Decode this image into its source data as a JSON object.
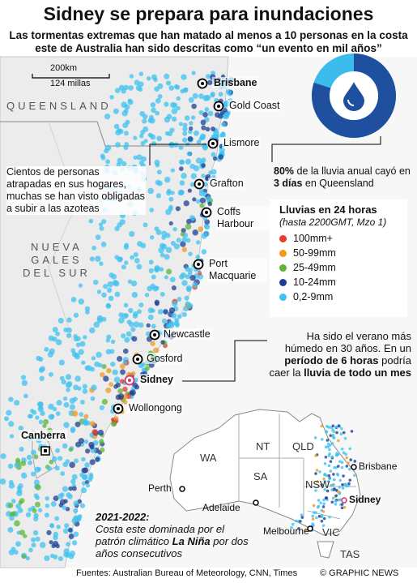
{
  "header": {
    "title": "Sidney se prepara para inundaciones",
    "subtitle": "Las tormentas extremas que han matado al menos a 10 personas en la costa este de Australia han sido descritas como “un evento en mil años”"
  },
  "scale": {
    "km": "200km",
    "miles": "124 millas"
  },
  "regions": {
    "queensland": "QUEENSLAND",
    "nsw": [
      "NUEVA",
      "GALES",
      "DEL SUR"
    ]
  },
  "cities": [
    {
      "name": "Brisbane",
      "bold": true
    },
    {
      "name": "Gold Coast",
      "bold": false
    },
    {
      "name": "Lismore",
      "bold": false
    },
    {
      "name": "Grafton",
      "bold": false
    },
    {
      "name": "Coffs Harbour",
      "bold": false
    },
    {
      "name": "Port Macquarie",
      "bold": false
    },
    {
      "name": "Newcastle",
      "bold": false
    },
    {
      "name": "Gosford",
      "bold": false
    },
    {
      "name": "Sidney",
      "bold": true
    },
    {
      "name": "Wollongong",
      "bold": false
    },
    {
      "name": "Canberra",
      "bold": true
    }
  ],
  "annotation_left": "Cientos de personas atrapadas en sus hogares, muchas se han visto obligadas a subir a las azoteas",
  "donut": {
    "value": 80,
    "value_label": "80%",
    "colors": [
      "#1f4f9f",
      "#3bbcec"
    ],
    "text": [
      " de la lluvia anual cayó en ",
      "3 días",
      " en Queensland"
    ]
  },
  "legend": {
    "title": "Lluvias en 24 horas",
    "subtitle": "(hasta 2200GMT, Mzo 1)",
    "items": [
      {
        "label": "100mm+",
        "color": "#e63b2e"
      },
      {
        "label": "50-99mm",
        "color": "#f39a1e"
      },
      {
        "label": "25-49mm",
        "color": "#5cb53a"
      },
      {
        "label": "10-24mm",
        "color": "#1c3f94"
      },
      {
        "label": "0,2-9mm",
        "color": "#3fc2f0"
      }
    ]
  },
  "annotation_right": [
    "Ha sido el verano más húmedo en 30 años. En un ",
    "período de 6 horas",
    " podría caer la ",
    "lluvia de todo un mes"
  ],
  "inset": {
    "states": [
      "WA",
      "NT",
      "QLD",
      "SA",
      "NSW",
      "VIC",
      "TAS"
    ],
    "cities": [
      "Perth",
      "Adelaide",
      "Melbourne",
      "Brisbane",
      "Sidney"
    ]
  },
  "note": [
    "2021-2022:",
    "Costa este dominada por el patrón climático ",
    "La Niña",
    " por dos años consecutivos"
  ],
  "footer": {
    "source": "Fuentes: Australian Bureau of Meteorology, CNN, Times",
    "credit": "© GRAPHIC NEWS"
  }
}
